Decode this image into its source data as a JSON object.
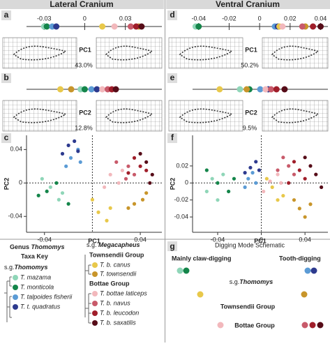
{
  "headers": [
    "Lateral Cranium",
    "Ventral Cranium"
  ],
  "taxa": [
    {
      "name": "T. mazama",
      "color": "#8fd6b8"
    },
    {
      "name": "T. monticola",
      "color": "#14854a"
    },
    {
      "name": "T. talpoides fisherii",
      "color": "#5b9bd5"
    },
    {
      "name": "T. t. quadratus",
      "color": "#2d3a8e"
    },
    {
      "name": "T. b. canus",
      "color": "#e8c84a"
    },
    {
      "name": "T. townsendii",
      "color": "#c8952a"
    },
    {
      "name": "T. bottae laticeps",
      "color": "#f2b8bc"
    },
    {
      "name": "T. b. navus",
      "color": "#c85a6a"
    },
    {
      "name": "T. b. leucodon",
      "color": "#a01e2a"
    },
    {
      "name": "T. b. saxatilis",
      "color": "#560c18"
    }
  ],
  "panels": [
    {
      "letter": "a",
      "type": "strip",
      "label": "PC1",
      "variance": "43.0%",
      "xlim": [
        -0.043,
        0.057
      ],
      "xticks": [
        -0.03,
        0,
        0.03
      ],
      "values": [
        -0.03,
        -0.028,
        -0.024,
        -0.021,
        0.013,
        0.04,
        0.022,
        0.034,
        0.038,
        0.042
      ]
    },
    {
      "letter": "b",
      "type": "strip",
      "label": "PC2",
      "variance": "12.8%",
      "xlim": [
        -0.05,
        0.05
      ],
      "xticks": [],
      "values": [
        -0.01,
        -0.007,
        -0.002,
        0.002,
        -0.025,
        -0.017,
        0.006,
        0.01,
        0.013,
        0.016
      ]
    },
    {
      "letter": "c",
      "type": "scatter",
      "xlabel": "PC1",
      "ylabel": "PC2",
      "xlim": [
        -0.055,
        0.058
      ],
      "ylim": [
        -0.059,
        0.057
      ],
      "xticks": [
        -0.04,
        0.04
      ],
      "yticks": [
        0.04,
        0,
        -0.04
      ],
      "series": [
        {
          "x": [
            -0.035,
            -0.028,
            -0.042,
            -0.025
          ],
          "y": [
            -0.005,
            -0.02,
            0.005,
            -0.012
          ]
        },
        {
          "x": [
            -0.038,
            -0.03,
            -0.02,
            -0.045
          ],
          "y": [
            -0.01,
            0,
            -0.025,
            -0.015
          ]
        },
        {
          "x": [
            -0.018,
            -0.012,
            -0.022,
            -0.01
          ],
          "y": [
            0.03,
            0.04,
            0.02,
            0.025
          ]
        },
        {
          "x": [
            -0.02,
            -0.015,
            -0.025,
            -0.012
          ],
          "y": [
            0.045,
            0.05,
            0.035,
            0.038
          ]
        },
        {
          "x": [
            0.005,
            0.012,
            0,
            0.015
          ],
          "y": [
            -0.035,
            -0.045,
            -0.02,
            -0.03
          ]
        },
        {
          "x": [
            0.035,
            0.042,
            0.03,
            0.045
          ],
          "y": [
            -0.025,
            -0.02,
            -0.03,
            -0.012
          ]
        },
        {
          "x": [
            0.015,
            0.022,
            0.01,
            0.025
          ],
          "y": [
            0.01,
            0,
            -0.005,
            0.015
          ]
        },
        {
          "x": [
            0.03,
            0.02,
            0.035,
            0.028
          ],
          "y": [
            0.02,
            0.025,
            0.01,
            0.005
          ]
        },
        {
          "x": [
            0.04,
            0.035,
            0.045,
            0.03
          ],
          "y": [
            0.02,
            0.03,
            0.015,
            0.012
          ]
        },
        {
          "x": [
            0.045,
            0.05,
            0.04,
            0.048
          ],
          "y": [
            0.025,
            0.01,
            0.035,
            0
          ]
        }
      ]
    },
    {
      "letter": "d",
      "type": "strip",
      "label": "PC1",
      "variance": "50.2%",
      "xlim": [
        -0.044,
        0.0448
      ],
      "xticks": [
        -0.04,
        -0.02,
        0,
        0.02,
        0.04
      ],
      "values": [
        -0.042,
        -0.04,
        0.01,
        0.012,
        0.013,
        0.03,
        0.015,
        0.028,
        0.035,
        0.04
      ]
    },
    {
      "letter": "e",
      "type": "strip",
      "label": "PC2",
      "variance": "9.5%",
      "xlim": [
        -0.05,
        0.05
      ],
      "xticks": [],
      "values": [
        -0.015,
        -0.008,
        0,
        0.006,
        -0.03,
        -0.01,
        0.004,
        0.008,
        0.012,
        0.018
      ]
    },
    {
      "letter": "f",
      "type": "scatter",
      "xlabel": "PC1",
      "ylabel": "PC2",
      "xlim": [
        -0.063,
        0.061
      ],
      "ylim": [
        -0.058,
        0.056
      ],
      "xticks": [
        -0.04,
        0,
        0.04
      ],
      "yticks": [
        0.02,
        0,
        -0.02,
        -0.04
      ],
      "series": [
        {
          "x": [
            -0.045,
            -0.05,
            -0.035,
            -0.04
          ],
          "y": [
            0.005,
            -0.01,
            0.01,
            -0.02
          ]
        },
        {
          "x": [
            -0.04,
            -0.03,
            -0.05,
            -0.025
          ],
          "y": [
            0,
            -0.01,
            0.015,
            0.005
          ]
        },
        {
          "x": [
            -0.012,
            -0.008,
            -0.015,
            -0.005
          ],
          "y": [
            0.005,
            0.012,
            -0.005,
            0
          ]
        },
        {
          "x": [
            -0.01,
            -0.005,
            -0.015,
            -0.002
          ],
          "y": [
            0.018,
            0.025,
            0.012,
            0.015
          ]
        },
        {
          "x": [
            0.01,
            0.015,
            0.005,
            0.02
          ],
          "y": [
            -0.005,
            -0.02,
            0.005,
            -0.015
          ]
        },
        {
          "x": [
            0.035,
            0.04,
            0.03,
            0.045
          ],
          "y": [
            -0.03,
            -0.04,
            -0.02,
            -0.025
          ]
        },
        {
          "x": [
            0.008,
            0.015,
            0.002,
            0.018
          ],
          "y": [
            0.002,
            0.01,
            -0.01,
            0
          ]
        },
        {
          "x": [
            0.025,
            0.02,
            0.03,
            0.015
          ],
          "y": [
            0.02,
            0.03,
            0.01,
            0.015
          ]
        },
        {
          "x": [
            0.035,
            0.03,
            0.04,
            0.025
          ],
          "y": [
            0.015,
            0.025,
            0.005,
            0
          ]
        },
        {
          "x": [
            0.045,
            0.05,
            0.04,
            0.055
          ],
          "y": [
            0.02,
            0.01,
            0.03,
            -0.005
          ]
        }
      ]
    }
  ],
  "key": {
    "genus_prefix": "Genus",
    "genus": "Thomomys",
    "title": "Taxa Key",
    "sg1_prefix": "s.g.",
    "sg1": "Thomomys",
    "sg2_prefix": "s.g.",
    "sg2": "Megacapheus",
    "group1": "Townsendii Group",
    "group2": "Bottae Group"
  },
  "schematic": {
    "letter": "g",
    "title": "Digging Mode Schematic",
    "left": "Mainly claw-digging",
    "right": "Tooth-digging",
    "row1_prefix": "s.g.",
    "row1": "Thomomys",
    "row2": "Townsendii Group",
    "row3": "Bottae Group"
  }
}
